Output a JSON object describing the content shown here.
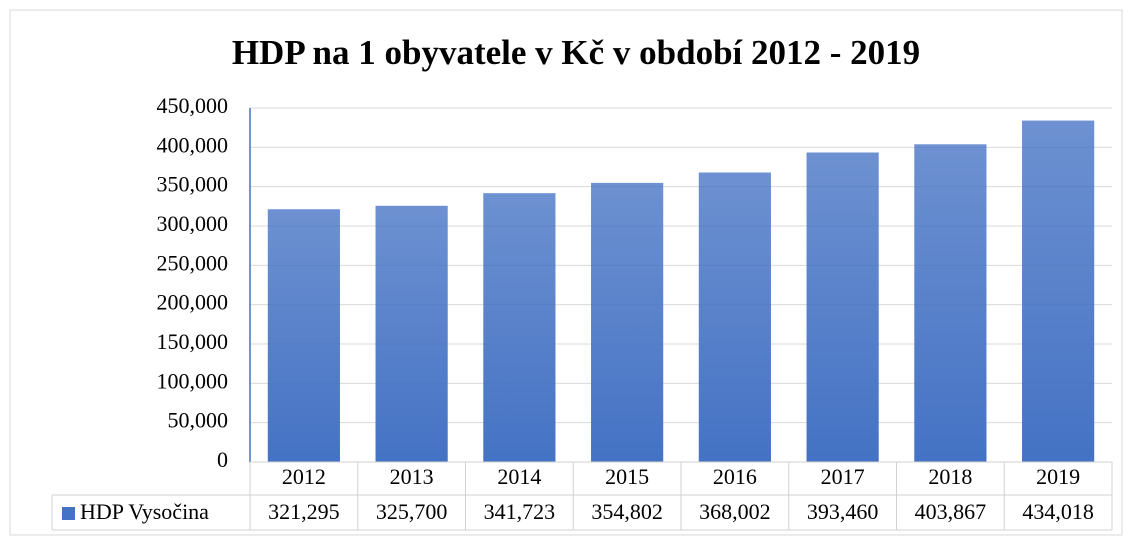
{
  "chart_data": {
    "type": "bar",
    "title": "HDP na 1 obyvatele v Kč v období 2012 - 2019",
    "categories": [
      "2012",
      "2013",
      "2014",
      "2015",
      "2016",
      "2017",
      "2018",
      "2019"
    ],
    "series": [
      {
        "name": "HDP Vysočina",
        "color": "#4472c4",
        "values": [
          321295,
          325700,
          341723,
          354802,
          368002,
          393460,
          403867,
          434018
        ],
        "value_labels": [
          "321,295",
          "325,700",
          "341,723",
          "354,802",
          "368,002",
          "393,460",
          "403,867",
          "434,018"
        ]
      }
    ],
    "ylim": [
      0,
      450000
    ],
    "yticks": [
      0,
      {
        "value": 50000,
        "label": "50,000"
      },
      {
        "value": 100000,
        "label": "100,000"
      },
      {
        "value": 150000,
        "label": "150,000"
      },
      {
        "value": 200000,
        "label": "200,000"
      },
      {
        "value": 250000,
        "label": "250,000"
      },
      {
        "value": 300000,
        "label": "300,000"
      },
      {
        "value": 350000,
        "label": "350,000"
      },
      {
        "value": 400000,
        "label": "400,000"
      },
      {
        "value": 450000,
        "label": "450,000"
      }
    ],
    "grid": true,
    "legend": "table"
  }
}
